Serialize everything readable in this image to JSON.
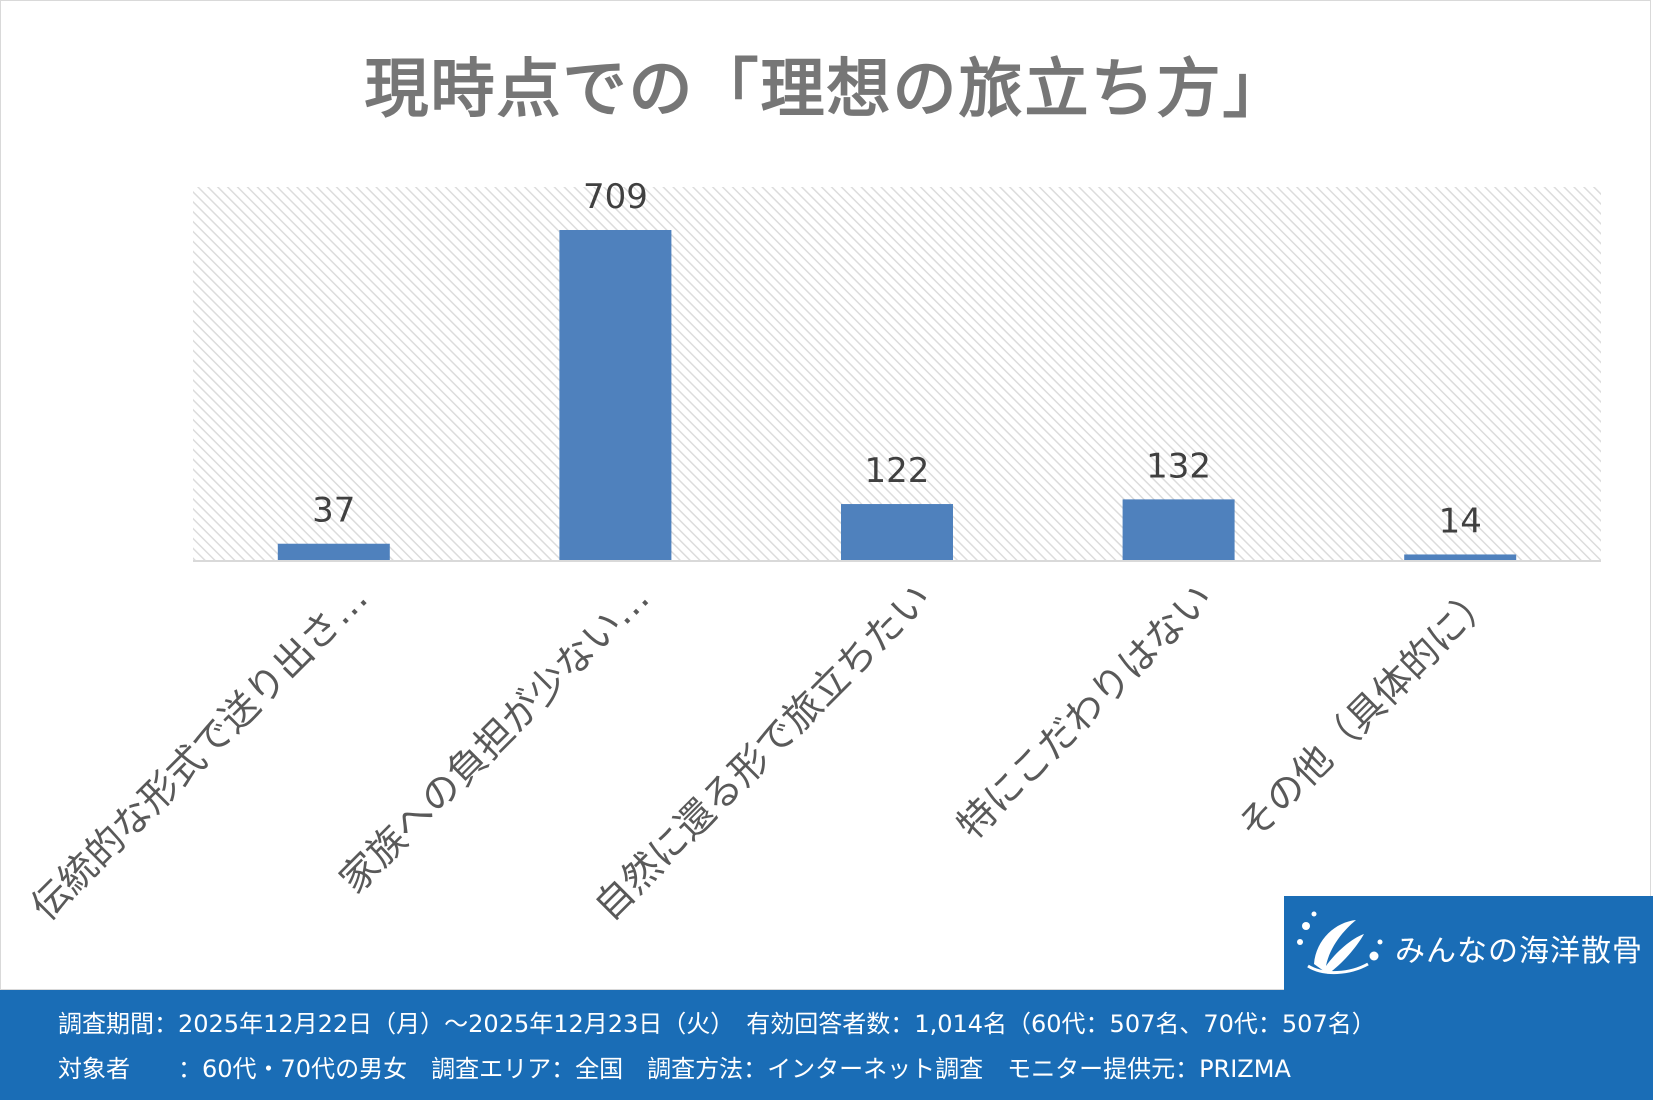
{
  "chart_data": {
    "type": "bar",
    "title": "現時点での「理想の旅立ち方」",
    "categories": [
      "伝統的な形式で送り出さ…",
      "家族への負担が少ない…",
      "自然に還る形で旅立ちたい",
      "特にこだわりはない",
      "その他（具体的に）"
    ],
    "values": [
      37,
      709,
      122,
      132,
      14
    ],
    "ylim": [
      0,
      800
    ],
    "grid": false,
    "data_labels": true,
    "colors": {
      "bar": "#4f81bd",
      "plot_pattern": "#dcdcdc",
      "label": "#404040"
    }
  },
  "logo": {
    "text": "みんなの海洋散骨"
  },
  "footer": {
    "line1": "調査期間：2025年12月22日（月）～2025年12月23日（火）　有効回答者数：1,014名（60代：507名、70代：507名）",
    "line2": "対象者　　：60代・70代の男女　調査エリア：全国　調査方法：インターネット調査　モニター提供元：PRIZMA"
  }
}
